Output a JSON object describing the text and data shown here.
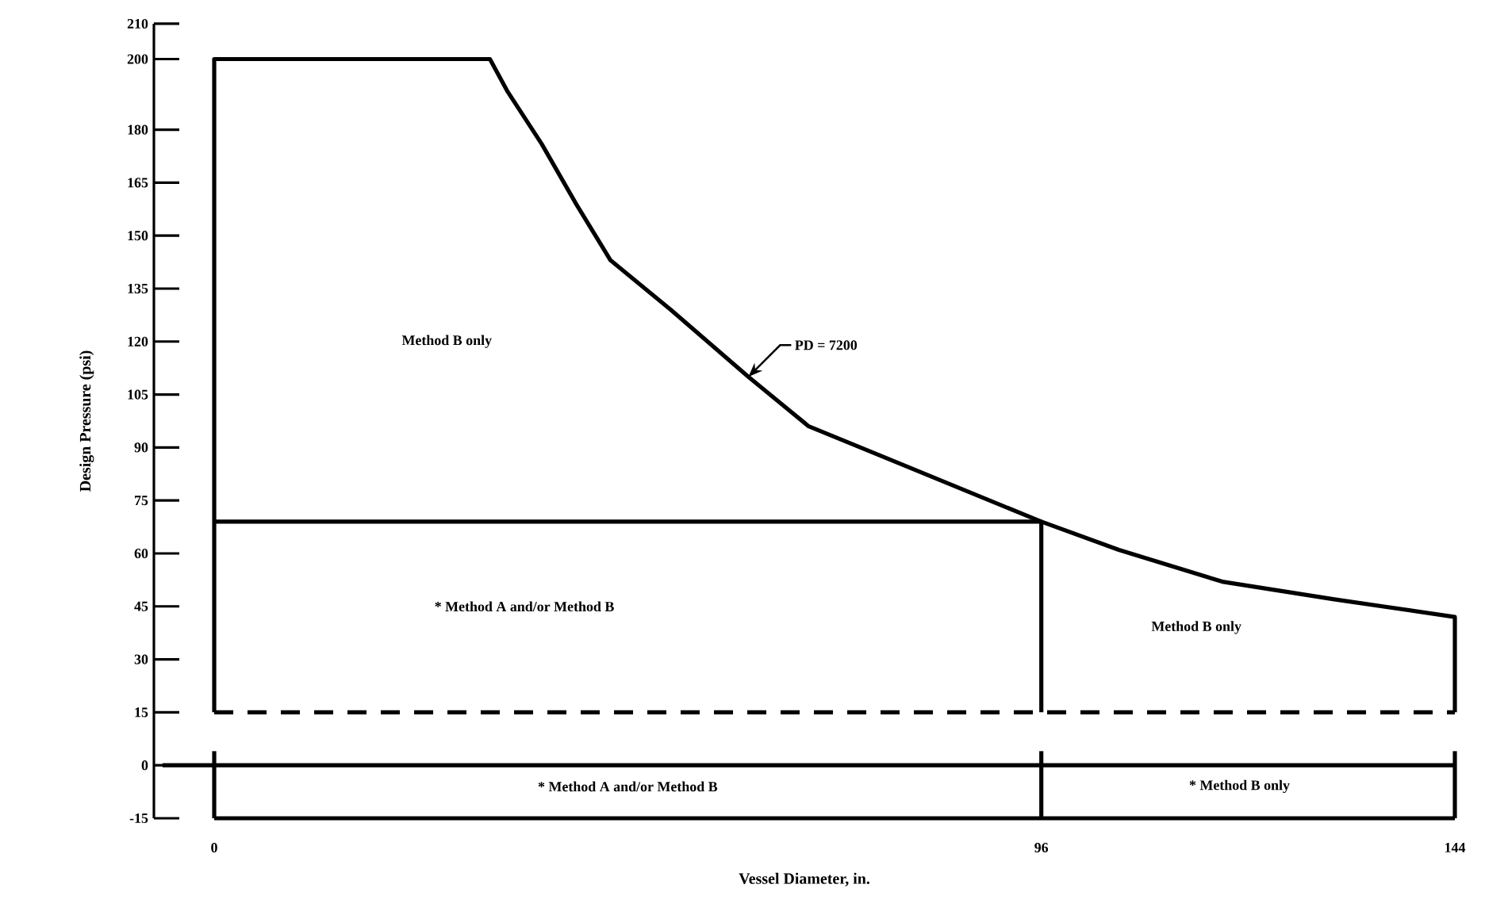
{
  "chart_data": {
    "type": "line",
    "xlabel": "Vessel Diameter, in.",
    "ylabel": "Design Pressure (psi)",
    "xlim": [
      -7,
      144
    ],
    "ylim": [
      -15,
      210
    ],
    "xticks": [
      0,
      96,
      144
    ],
    "yticks": [
      -15,
      0,
      15,
      30,
      45,
      60,
      75,
      90,
      105,
      120,
      135,
      150,
      165,
      180,
      200,
      210
    ],
    "series": [
      {
        "color": "#000000",
        "x": [
          0,
          0,
          32,
          34,
          38,
          42,
          46,
          53,
          62,
          69,
          79,
          96,
          105,
          117,
          130,
          144,
          144
        ],
        "values": [
          15,
          200,
          200,
          191,
          176,
          159,
          143,
          129,
          110,
          96,
          86,
          69,
          61,
          52,
          47,
          42,
          15
        ]
      },
      {
        "color": "#000000",
        "x": [
          0,
          96,
          96
        ],
        "values": [
          69,
          69,
          15
        ]
      },
      {
        "color": "#000000",
        "x": [
          0,
          144
        ],
        "values": [
          15,
          15
        ],
        "line_style": "dashed"
      },
      {
        "color": "#000000",
        "x": [
          -6,
          144
        ],
        "values": [
          0,
          0
        ]
      },
      {
        "color": "#000000",
        "x": [
          0,
          144
        ],
        "values": [
          -15,
          -15
        ]
      },
      {
        "color": "#000000",
        "x": [
          0,
          0
        ],
        "values": [
          4,
          -15
        ]
      },
      {
        "color": "#000000",
        "x": [
          144,
          144
        ],
        "values": [
          4,
          -15
        ]
      },
      {
        "color": "#000000",
        "x": [
          96,
          96
        ],
        "values": [
          4,
          -15
        ]
      }
    ],
    "annotations": [
      "Method B only",
      {
        "text": "PD = 7200",
        "x": 62,
        "y": 110
      },
      "* Method A and/or Method B",
      "Method B only",
      "* Method A and/or Method B",
      "* Method B only"
    ],
    "marker": "none",
    "line_style": "solid"
  }
}
